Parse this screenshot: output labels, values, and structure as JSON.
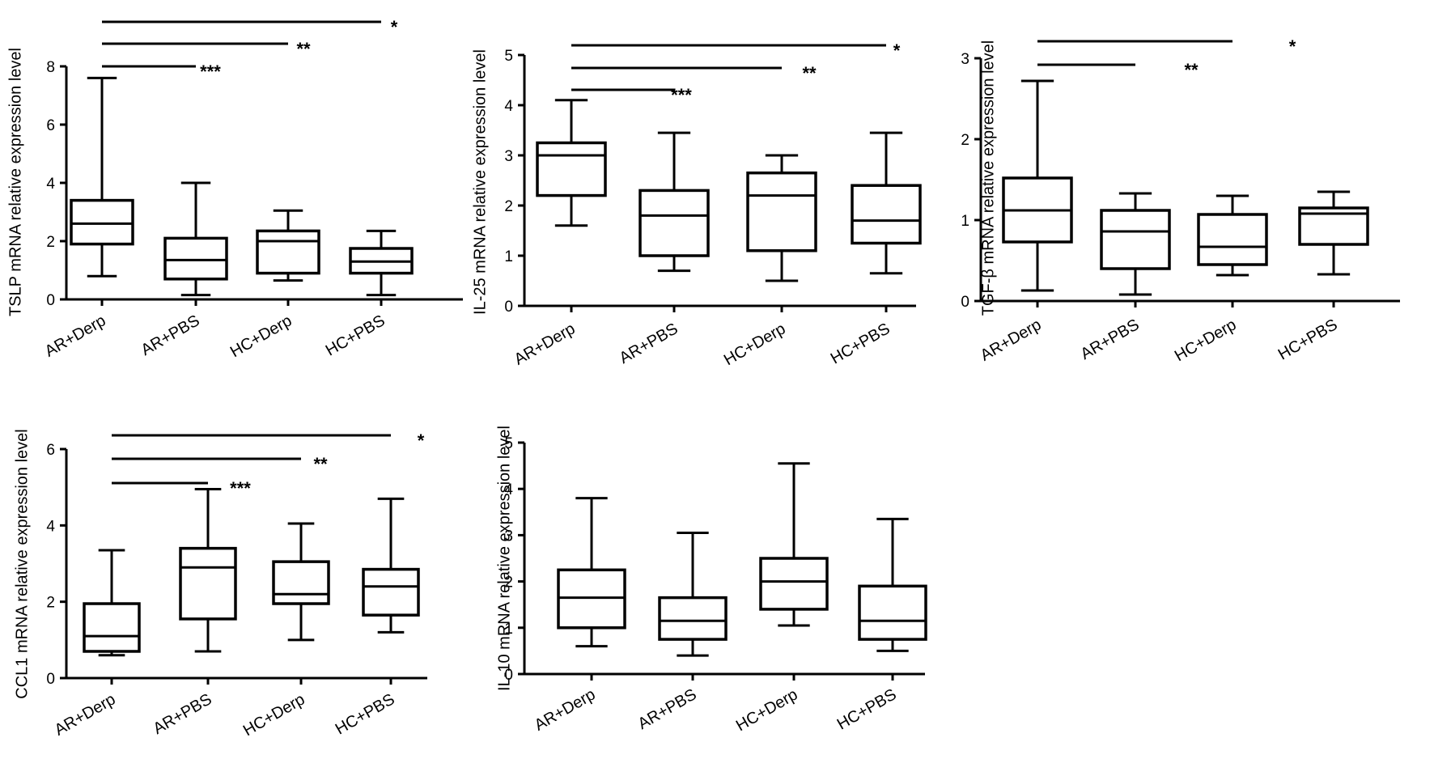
{
  "chart_data": [
    {
      "type": "boxplot",
      "panel": "TSLP",
      "ylabel": "TSLP mRNA relative expression level",
      "ylim": [
        0,
        8
      ],
      "yticks": [
        0,
        2,
        4,
        6,
        8
      ],
      "categories": [
        "AR+Derp",
        "AR+PBS",
        "HC+Derp",
        "HC+PBS"
      ],
      "boxes": [
        {
          "min": 0.8,
          "q1": 1.9,
          "median": 2.6,
          "q3": 3.4,
          "max": 7.6
        },
        {
          "min": 0.15,
          "q1": 0.7,
          "median": 1.35,
          "q3": 2.1,
          "max": 4.0
        },
        {
          "min": 0.65,
          "q1": 0.9,
          "median": 2.0,
          "q3": 2.35,
          "max": 3.05
        },
        {
          "min": 0.15,
          "q1": 0.9,
          "median": 1.3,
          "q3": 1.75,
          "max": 2.35
        }
      ],
      "significance": [
        {
          "from": 0,
          "to": 3,
          "label": "*"
        },
        {
          "from": 0,
          "to": 2,
          "label": "**"
        },
        {
          "from": 0,
          "to": 1,
          "label": "***"
        }
      ]
    },
    {
      "type": "boxplot",
      "panel": "IL-25",
      "ylabel": "IL-25 mRNA relative expression level",
      "ylim": [
        0,
        5
      ],
      "yticks": [
        0,
        1,
        2,
        3,
        4,
        5
      ],
      "categories": [
        "AR+Derp",
        "AR+PBS",
        "HC+Derp",
        "HC+PBS"
      ],
      "boxes": [
        {
          "min": 1.6,
          "q1": 2.2,
          "median": 3.0,
          "q3": 3.25,
          "max": 4.1
        },
        {
          "min": 0.7,
          "q1": 1.0,
          "median": 1.8,
          "q3": 2.3,
          "max": 3.45
        },
        {
          "min": 0.5,
          "q1": 1.1,
          "median": 2.2,
          "q3": 2.65,
          "max": 3.0
        },
        {
          "min": 0.65,
          "q1": 1.25,
          "median": 1.7,
          "q3": 2.4,
          "max": 3.45
        }
      ],
      "significance": [
        {
          "from": 0,
          "to": 3,
          "label": "*"
        },
        {
          "from": 0,
          "to": 2,
          "label": "**"
        },
        {
          "from": 0,
          "to": 1,
          "label": "***"
        }
      ]
    },
    {
      "type": "boxplot",
      "panel": "TGF-β",
      "ylabel": "TGF-β  mRNA relative expression level",
      "ylim": [
        0,
        3
      ],
      "yticks": [
        0,
        1,
        2,
        3
      ],
      "categories": [
        "AR+Derp",
        "AR+PBS",
        "HC+Derp",
        "HC+PBS"
      ],
      "boxes": [
        {
          "min": 0.13,
          "q1": 0.73,
          "median": 1.12,
          "q3": 1.52,
          "max": 2.72
        },
        {
          "min": 0.08,
          "q1": 0.4,
          "median": 0.86,
          "q3": 1.12,
          "max": 1.33
        },
        {
          "min": 0.32,
          "q1": 0.45,
          "median": 0.67,
          "q3": 1.07,
          "max": 1.3
        },
        {
          "min": 0.33,
          "q1": 0.7,
          "median": 1.08,
          "q3": 1.15,
          "max": 1.35
        }
      ],
      "significance": [
        {
          "from": 0,
          "to": 2,
          "label": "*"
        },
        {
          "from": 0,
          "to": 1,
          "label": "**"
        }
      ]
    },
    {
      "type": "boxplot",
      "panel": "CCL1",
      "ylabel": "CCL1 mRNA relative expression level",
      "ylim": [
        0,
        6
      ],
      "yticks": [
        0,
        2,
        4,
        6
      ],
      "categories": [
        "AR+Derp",
        "AR+PBS",
        "HC+Derp",
        "HC+PBS"
      ],
      "boxes": [
        {
          "min": 0.6,
          "q1": 0.7,
          "median": 1.1,
          "q3": 1.95,
          "max": 3.35
        },
        {
          "min": 0.7,
          "q1": 1.55,
          "median": 2.9,
          "q3": 3.4,
          "max": 4.95
        },
        {
          "min": 1.0,
          "q1": 1.95,
          "median": 2.2,
          "q3": 3.05,
          "max": 4.05
        },
        {
          "min": 1.2,
          "q1": 1.65,
          "median": 2.4,
          "q3": 2.85,
          "max": 4.7
        }
      ],
      "significance": [
        {
          "from": 0,
          "to": 3,
          "label": "*"
        },
        {
          "from": 0,
          "to": 2,
          "label": "**"
        },
        {
          "from": 0,
          "to": 1,
          "label": "***"
        }
      ]
    },
    {
      "type": "boxplot",
      "panel": "IL-10",
      "ylabel": "IL-10 mRNA relative expression level",
      "ylim": [
        0,
        5
      ],
      "yticks": [
        0,
        1,
        2,
        3,
        4,
        5
      ],
      "categories": [
        "AR+Derp",
        "AR+PBS",
        "HC+Derp",
        "HC+PBS"
      ],
      "boxes": [
        {
          "min": 0.6,
          "q1": 1.0,
          "median": 1.65,
          "q3": 2.25,
          "max": 3.8
        },
        {
          "min": 0.4,
          "q1": 0.75,
          "median": 1.15,
          "q3": 1.65,
          "max": 3.05
        },
        {
          "min": 1.05,
          "q1": 1.4,
          "median": 2.0,
          "q3": 2.5,
          "max": 4.55
        },
        {
          "min": 0.5,
          "q1": 0.75,
          "median": 1.15,
          "q3": 1.9,
          "max": 3.35
        }
      ],
      "significance": []
    }
  ]
}
